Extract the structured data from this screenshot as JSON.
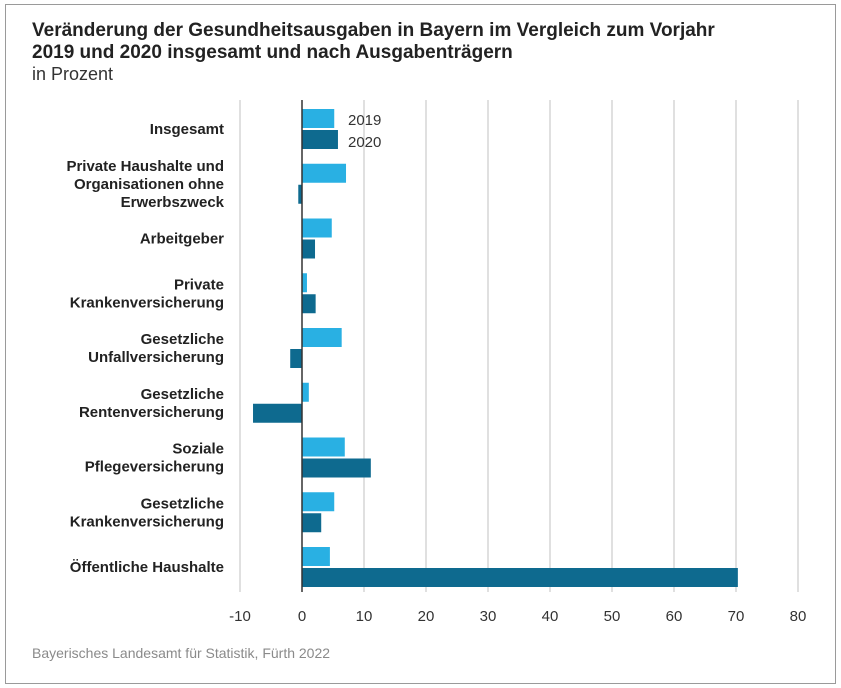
{
  "chart_data": {
    "type": "bar",
    "orientation": "horizontal",
    "title": [
      "Veränderung der Gesundheitsausgaben in Bayern im Vergleich zum Vorjahr",
      "2019 und 2020 insgesamt und nach Ausgabenträgern"
    ],
    "subtitle": "in Prozent",
    "source": "Bayerisches Landesamt für Statistik, Fürth 2022",
    "categories": [
      [
        "Insgesamt"
      ],
      [
        "Private Haushalte und",
        "Organisationen ohne",
        "Erwerbszweck"
      ],
      [
        "Arbeitgeber"
      ],
      [
        "Private",
        "Krankenversicherung"
      ],
      [
        "Gesetzliche",
        "Unfallversicherung"
      ],
      [
        "Gesetzliche",
        "Rentenversicherung"
      ],
      [
        "Soziale",
        "Pflegeversicherung"
      ],
      [
        "Gesetzliche",
        "Krankenversicherung"
      ],
      [
        "Öffentliche Haushalte"
      ]
    ],
    "series": [
      {
        "name": "2019",
        "color": "#29b0e3",
        "values": [
          5.2,
          7.1,
          4.8,
          0.8,
          6.4,
          1.1,
          6.9,
          5.2,
          4.5
        ]
      },
      {
        "name": "2020",
        "color": "#0e6a8f",
        "values": [
          5.8,
          -0.6,
          2.1,
          2.2,
          -1.9,
          -7.9,
          11.1,
          3.1,
          70.3
        ]
      }
    ],
    "xlim": [
      -10,
      80
    ],
    "xticks": [
      -10,
      0,
      10,
      20,
      30,
      40,
      50,
      60,
      70,
      80
    ],
    "grid": true,
    "legend": "top, next to first category"
  }
}
